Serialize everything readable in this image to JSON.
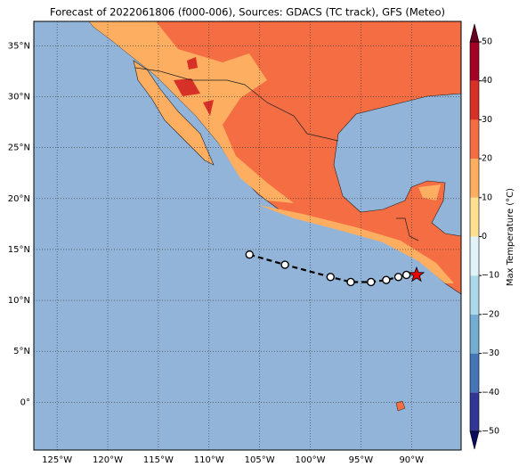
{
  "title": "Forecast of 2022061806 (f000-006), Sources: GDACS (TC track), GFS (Meteo)",
  "map": {
    "xlim": [
      -127.3,
      -85.1
    ],
    "ylim": [
      -4.7,
      37.4
    ],
    "xticks": [
      {
        "value": -125,
        "label": "125°W"
      },
      {
        "value": -120,
        "label": "120°W"
      },
      {
        "value": -115,
        "label": "115°W"
      },
      {
        "value": -110,
        "label": "110°W"
      },
      {
        "value": -105,
        "label": "105°W"
      },
      {
        "value": -100,
        "label": "100°W"
      },
      {
        "value": -95,
        "label": "95°W"
      },
      {
        "value": -90,
        "label": "90°W"
      }
    ],
    "yticks": [
      {
        "value": 0,
        "label": "0°"
      },
      {
        "value": 5,
        "label": "5°N"
      },
      {
        "value": 10,
        "label": "10°N"
      },
      {
        "value": 15,
        "label": "15°N"
      },
      {
        "value": 20,
        "label": "20°N"
      },
      {
        "value": 25,
        "label": "25°N"
      },
      {
        "value": 30,
        "label": "30°N"
      },
      {
        "value": 35,
        "label": "35°N"
      }
    ],
    "track": {
      "lon": [
        -106,
        -102.5,
        -98,
        -96,
        -94,
        -92.5,
        -91.3,
        -90.5
      ],
      "lat": [
        14.5,
        13.5,
        12.3,
        11.8,
        11.8,
        12.0,
        12.3,
        12.5
      ]
    },
    "current": {
      "lon": -89.5,
      "lat": 12.5
    }
  },
  "colorbar": {
    "label": "Max Temperature (°C)",
    "ylim": [
      -50,
      50
    ],
    "ticks": [
      {
        "value": -50,
        "label": "−50"
      },
      {
        "value": -40,
        "label": "−40"
      },
      {
        "value": -30,
        "label": "−30"
      },
      {
        "value": -20,
        "label": "−20"
      },
      {
        "value": -10,
        "label": "−10"
      },
      0,
      10,
      20,
      30,
      40,
      50
    ],
    "colors": [
      "#313695",
      "#4575b4",
      "#74add1",
      "#abd9e9",
      "#e0f3f8",
      "#fee090",
      "#fdae61",
      "#f46d43",
      "#d73027",
      "#a50026"
    ]
  }
}
